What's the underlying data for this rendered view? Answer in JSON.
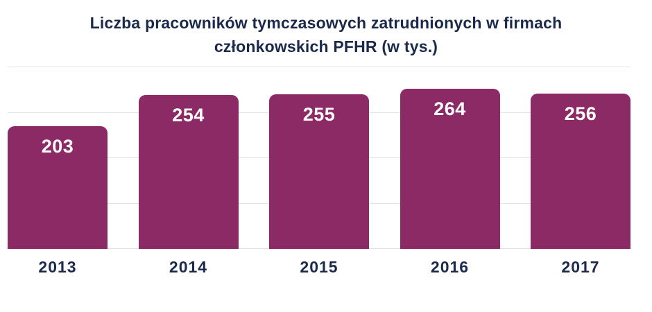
{
  "chart_data": {
    "type": "bar",
    "title": "Liczba pracowników tymczasowych zatrudnionych w firmach członkowskich PFHR (w tys.)",
    "categories": [
      "2013",
      "2014",
      "2015",
      "2016",
      "2017"
    ],
    "values": [
      203,
      254,
      255,
      264,
      256
    ],
    "xlabel": "",
    "ylabel": "",
    "ylim": [
      0,
      300
    ],
    "gridlines": [
      0,
      75,
      150,
      225,
      300
    ],
    "grid": true,
    "legend": "none",
    "value_labels": "inside-top",
    "bar_color": "#8C2A65",
    "value_label_color": "#ffffff",
    "axis_label_color": "#1B2A4B",
    "title_color": "#1B2A4B",
    "gridline_color": "#E4E4E4",
    "background_color": "#ffffff"
  }
}
